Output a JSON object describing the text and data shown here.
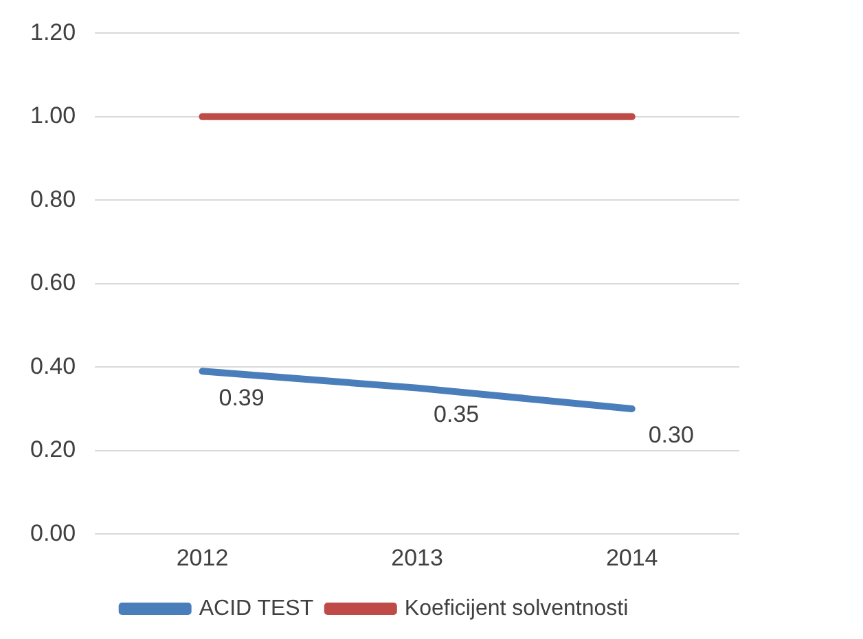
{
  "chart_data": {
    "type": "line",
    "categories": [
      "2012",
      "2013",
      "2014"
    ],
    "series": [
      {
        "name": "ACID TEST",
        "color": "#4a7ebb",
        "values": [
          0.39,
          0.35,
          0.3
        ],
        "value_labels": [
          "0.39",
          "0.35",
          "0.30"
        ]
      },
      {
        "name": "Koeficijent solventnosti",
        "color": "#be4b48",
        "values": [
          1,
          1,
          1
        ]
      }
    ],
    "ylim": [
      0,
      1.2
    ],
    "yticks": [
      {
        "value": 0,
        "label": "0.00"
      },
      {
        "value": 0.2,
        "label": "0.20"
      },
      {
        "value": 0.4,
        "label": "0.40"
      },
      {
        "value": 0.6,
        "label": "0.60"
      },
      {
        "value": 0.8,
        "label": "0.80"
      },
      {
        "value": 1,
        "label": "1.00"
      },
      {
        "value": 1.2,
        "label": "1.20"
      }
    ],
    "grid": "y",
    "legend": "bottom",
    "marker": "none",
    "line_style": "solid"
  }
}
